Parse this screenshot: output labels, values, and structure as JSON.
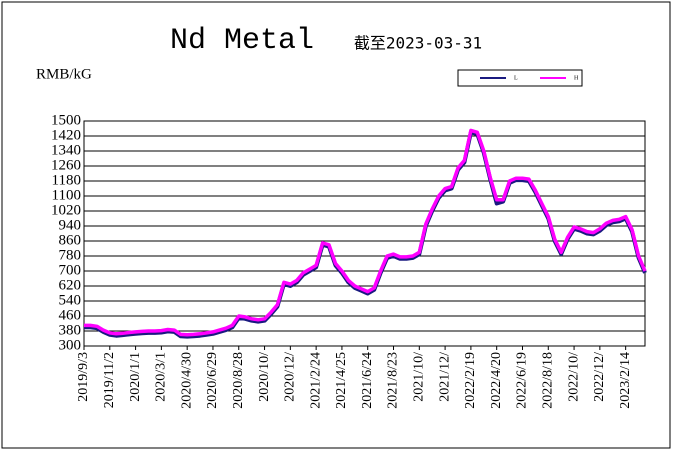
{
  "chart_data": {
    "type": "line",
    "title": "Nd Metal",
    "subtitle": "截至2023-03-31",
    "y_label": "RMB/kG",
    "categories": [
      "2019/9/3",
      null,
      null,
      null,
      "2019/11/2",
      null,
      null,
      null,
      "2020/1/1",
      null,
      null,
      null,
      "2020/3/1",
      null,
      null,
      null,
      "2020/4/30",
      null,
      null,
      null,
      "2020/6/29",
      null,
      null,
      null,
      "2020/8/28",
      null,
      null,
      null,
      "2020/10/",
      null,
      null,
      null,
      "2020/12/",
      null,
      null,
      null,
      "2021/2/24",
      null,
      null,
      null,
      "2021/4/25",
      null,
      null,
      null,
      "2021/6/24",
      null,
      null,
      null,
      "2021/8/23",
      null,
      null,
      null,
      "2021/10/",
      null,
      null,
      null,
      "2021/12/",
      null,
      null,
      null,
      "2022/2/19",
      null,
      null,
      null,
      "2022/4/20",
      null,
      null,
      null,
      "2022/6/19",
      null,
      null,
      null,
      "2022/8/18",
      null,
      null,
      null,
      "2022/10/",
      null,
      null,
      null,
      "2022/12/",
      null,
      null,
      null,
      "2023/2/14",
      null,
      null,
      null
    ],
    "series": [
      {
        "name": "L",
        "color": "#1a1a80",
        "values": [
          400,
          400,
          395,
          375,
          360,
          355,
          358,
          362,
          365,
          368,
          370,
          370,
          372,
          378,
          375,
          352,
          350,
          352,
          355,
          360,
          365,
          375,
          385,
          400,
          450,
          445,
          435,
          430,
          435,
          470,
          510,
          630,
          620,
          640,
          680,
          700,
          720,
          840,
          830,
          730,
          690,
          640,
          610,
          595,
          580,
          600,
          690,
          770,
          780,
          765,
          765,
          770,
          790,
          940,
          1020,
          1090,
          1130,
          1140,
          1240,
          1280,
          1440,
          1430,
          1330,
          1190,
          1060,
          1070,
          1170,
          1185,
          1185,
          1180,
          1120,
          1050,
          980,
          860,
          790,
          870,
          925,
          915,
          900,
          895,
          915,
          945,
          960,
          965,
          980,
          910,
          770,
          690
        ]
      },
      {
        "name": "H",
        "color": "#ff00ff",
        "values": [
          410,
          410,
          405,
          385,
          370,
          365,
          368,
          372,
          375,
          378,
          380,
          380,
          382,
          388,
          385,
          362,
          360,
          362,
          365,
          370,
          375,
          385,
          395,
          410,
          460,
          455,
          445,
          440,
          445,
          480,
          520,
          640,
          630,
          650,
          690,
          710,
          730,
          850,
          840,
          740,
          700,
          650,
          620,
          605,
          590,
          610,
          700,
          780,
          790,
          775,
          775,
          780,
          800,
          950,
          1030,
          1100,
          1140,
          1150,
          1250,
          1290,
          1450,
          1440,
          1340,
          1200,
          1080,
          1080,
          1180,
          1195,
          1195,
          1190,
          1130,
          1060,
          990,
          870,
          800,
          880,
          935,
          925,
          910,
          905,
          925,
          955,
          970,
          975,
          990,
          920,
          780,
          700
        ]
      }
    ],
    "ylim": [
      300,
      1500
    ],
    "yticks": [
      300,
      380,
      460,
      540,
      620,
      700,
      780,
      860,
      940,
      1020,
      1100,
      1180,
      1260,
      1340,
      1420,
      1500
    ],
    "grid": true
  }
}
